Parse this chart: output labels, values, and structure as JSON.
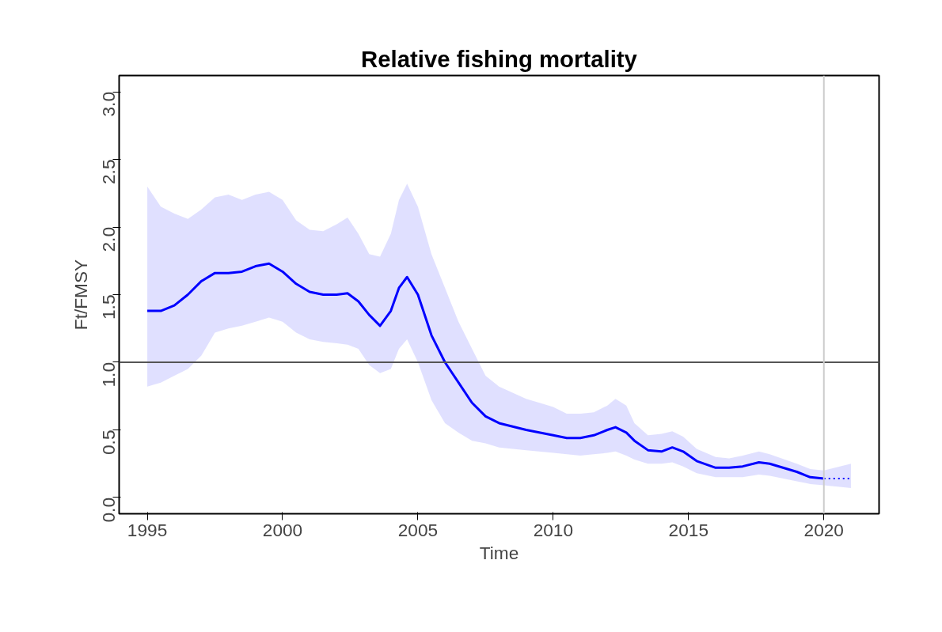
{
  "chart_data": {
    "type": "line",
    "title": "Relative fishing mortality",
    "xlabel": "Time",
    "ylabel": "Ft/FMSY",
    "xlim": [
      1993.96,
      2022.04
    ],
    "xticks": [
      1995,
      2000,
      2005,
      2010,
      2015,
      2020
    ],
    "ylim": [
      -0.12,
      3.12
    ],
    "yticks": [
      {
        "value": 0,
        "label": "0.0"
      },
      0.5,
      {
        "value": 1,
        "label": "1.0"
      },
      1.5,
      {
        "value": 2,
        "label": "2.0"
      },
      2.5,
      {
        "value": 3,
        "label": "3.0"
      }
    ],
    "grid": false,
    "marker": "none",
    "series": [
      {
        "color": "#0000ff",
        "line_style": "solid",
        "x": [
          1995,
          1995.5,
          1996,
          1996.5,
          1997,
          1997.5,
          1998,
          1998.5,
          1999,
          1999.5,
          2000,
          2000.5,
          2001,
          2001.5,
          2002,
          2002.4,
          2002.8,
          2003.2,
          2003.6,
          2004,
          2004.3,
          2004.6,
          2005,
          2005.5,
          2006,
          2006.5,
          2007,
          2007.5,
          2008,
          2009,
          2010,
          2010.5,
          2011,
          2011.5,
          2012,
          2012.3,
          2012.7,
          2013,
          2013.5,
          2014,
          2014.4,
          2014.8,
          2015.3,
          2016,
          2016.5,
          2017,
          2017.6,
          2018,
          2019,
          2019.5,
          2020
        ],
        "values": [
          1.38,
          1.38,
          1.42,
          1.5,
          1.6,
          1.66,
          1.66,
          1.67,
          1.71,
          1.73,
          1.67,
          1.58,
          1.52,
          1.5,
          1.5,
          1.51,
          1.45,
          1.35,
          1.27,
          1.38,
          1.55,
          1.63,
          1.5,
          1.2,
          1.0,
          0.85,
          0.7,
          0.6,
          0.55,
          0.5,
          0.46,
          0.44,
          0.44,
          0.46,
          0.5,
          0.52,
          0.48,
          0.42,
          0.35,
          0.34,
          0.37,
          0.34,
          0.27,
          0.22,
          0.22,
          0.23,
          0.26,
          0.25,
          0.19,
          0.15,
          0.14
        ],
        "lower": [
          0.82,
          0.85,
          0.9,
          0.95,
          1.05,
          1.22,
          1.25,
          1.27,
          1.3,
          1.33,
          1.3,
          1.22,
          1.17,
          1.15,
          1.14,
          1.13,
          1.1,
          0.98,
          0.92,
          0.95,
          1.1,
          1.17,
          1.0,
          0.72,
          0.55,
          0.48,
          0.42,
          0.4,
          0.37,
          0.35,
          0.33,
          0.32,
          0.31,
          0.32,
          0.33,
          0.34,
          0.31,
          0.28,
          0.25,
          0.25,
          0.26,
          0.23,
          0.18,
          0.15,
          0.15,
          0.15,
          0.17,
          0.16,
          0.12,
          0.1,
          0.09
        ],
        "upper": [
          2.3,
          2.15,
          2.1,
          2.06,
          2.13,
          2.22,
          2.24,
          2.2,
          2.24,
          2.26,
          2.2,
          2.05,
          1.98,
          1.97,
          2.02,
          2.07,
          1.95,
          1.8,
          1.78,
          1.95,
          2.2,
          2.32,
          2.15,
          1.8,
          1.55,
          1.3,
          1.1,
          0.9,
          0.82,
          0.73,
          0.67,
          0.62,
          0.62,
          0.63,
          0.68,
          0.73,
          0.68,
          0.55,
          0.46,
          0.47,
          0.49,
          0.45,
          0.36,
          0.3,
          0.29,
          0.31,
          0.34,
          0.32,
          0.25,
          0.21,
          0.2
        ]
      },
      {
        "color": "#0000ff",
        "line_style": "dotted",
        "x": [
          2020,
          2021
        ],
        "values": [
          0.14,
          0.14
        ],
        "lower": [
          0.09,
          0.07
        ],
        "upper": [
          0.2,
          0.25
        ]
      }
    ],
    "ref_lines": [
      {
        "axis": "y",
        "value": 1.0,
        "label": null,
        "color": "#555555",
        "line_style": "solid"
      },
      {
        "axis": "x",
        "value": 2020,
        "label": null,
        "color": "#cccccc",
        "line_style": "solid"
      }
    ]
  }
}
